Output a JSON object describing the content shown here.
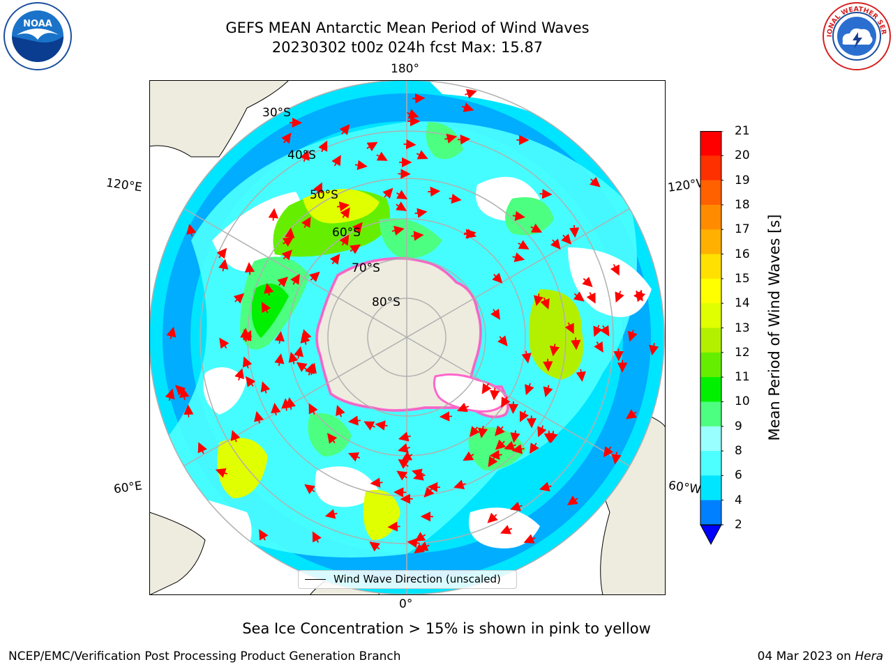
{
  "title": {
    "line1": "GEFS MEAN Antarctic Mean Period of Wind Waves",
    "line2": "20230302 t00z 024h fcst   Max: 15.87"
  },
  "logos": {
    "left": {
      "icon": "noaa-logo-icon",
      "text": "NOAA"
    },
    "right": {
      "icon": "nws-logo-icon",
      "text": "NATIONAL WEATHER SERVICE"
    }
  },
  "map": {
    "projection": "south-polar-stereographic",
    "longitude_labels": {
      "top": "180°",
      "bottom": "0°",
      "upper_left": "120°E",
      "upper_right": "120°W",
      "lower_left": "60°E",
      "lower_right": "60°W"
    },
    "latitude_labels": [
      "30°S",
      "40°S",
      "50°S",
      "60°S",
      "70°S",
      "80°S"
    ],
    "legend_label": "Wind Wave Direction (unscaled)",
    "colors": {
      "land": "#eeecdf",
      "ice": "#ff66cc",
      "ocean_min": "#0000ff",
      "grid": "#b0b0b0"
    }
  },
  "colorbar": {
    "label": "Mean Period of Wind Waves [s]",
    "ticks": [
      "2",
      "4",
      "6",
      "8",
      "9",
      "10",
      "11",
      "12",
      "13",
      "14",
      "15",
      "16",
      "17",
      "18",
      "19",
      "20",
      "21"
    ],
    "colors": [
      "#0000ff",
      "#0080ff",
      "#00e5ff",
      "#4dffff",
      "#99ffff",
      "#4dff80",
      "#00f000",
      "#66ee00",
      "#b3f000",
      "#e0ff00",
      "#ffff00",
      "#ffe000",
      "#ffb000",
      "#ff8c00",
      "#ff6000",
      "#ff3000",
      "#ff0000"
    ],
    "extend": "min"
  },
  "ice_note": "Sea Ice Concentration > 15% is shown in pink to yellow",
  "footer": {
    "left": "NCEP/EMC/Verification Post Processing Product Generation Branch",
    "right_date": "04 Mar 2023 on ",
    "right_host": "Hera"
  }
}
